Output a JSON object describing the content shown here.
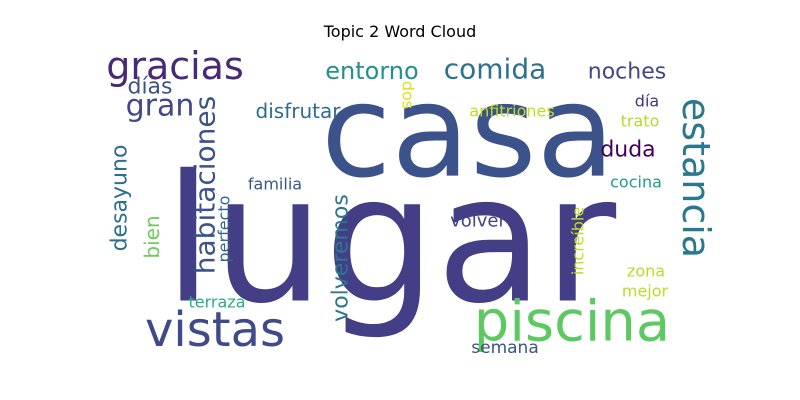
{
  "title": "Topic 2 Word Cloud",
  "words": [
    {
      "text": "casa",
      "color": "#3b528b"
    },
    {
      "text": "lugar",
      "color": "#433e85"
    },
    {
      "text": "piscina",
      "color": "#5ec962"
    },
    {
      "text": "vistas",
      "color": "#3e4a89"
    },
    {
      "text": "estancia",
      "color": "#2a788e"
    },
    {
      "text": "gracias",
      "color": "#482878"
    },
    {
      "text": "comida",
      "color": "#2c728e"
    },
    {
      "text": "habitaciones",
      "color": "#3b528b"
    },
    {
      "text": "entorno",
      "color": "#21918c"
    },
    {
      "text": "noches",
      "color": "#3f4788"
    },
    {
      "text": "gran",
      "color": "#3f4889"
    },
    {
      "text": "desayuno",
      "color": "#2d708e"
    },
    {
      "text": "volveremos",
      "color": "#2a788e"
    },
    {
      "text": "días",
      "color": "#3b528b"
    },
    {
      "text": "duda",
      "color": "#440154"
    },
    {
      "text": "disfrutar",
      "color": "#2f6c8e"
    },
    {
      "text": "bien",
      "color": "#6ccd5a"
    },
    {
      "text": "perfecto",
      "color": "#31668e"
    },
    {
      "text": "volver",
      "color": "#404588"
    },
    {
      "text": "familia",
      "color": "#39568c"
    },
    {
      "text": "terraza",
      "color": "#27ad81"
    },
    {
      "text": "semana",
      "color": "#3b528b"
    },
    {
      "text": "cocina",
      "color": "#1f9e89"
    },
    {
      "text": "increíble",
      "color": "#c2df23"
    },
    {
      "text": "zona",
      "color": "#b5de2b"
    },
    {
      "text": "mejor",
      "color": "#b8de29"
    },
    {
      "text": "anfitriones",
      "color": "#bddf26"
    },
    {
      "text": "día",
      "color": "#46337f"
    },
    {
      "text": "trato",
      "color": "#addc30"
    },
    {
      "text": "dos",
      "color": "#dde318"
    }
  ]
}
